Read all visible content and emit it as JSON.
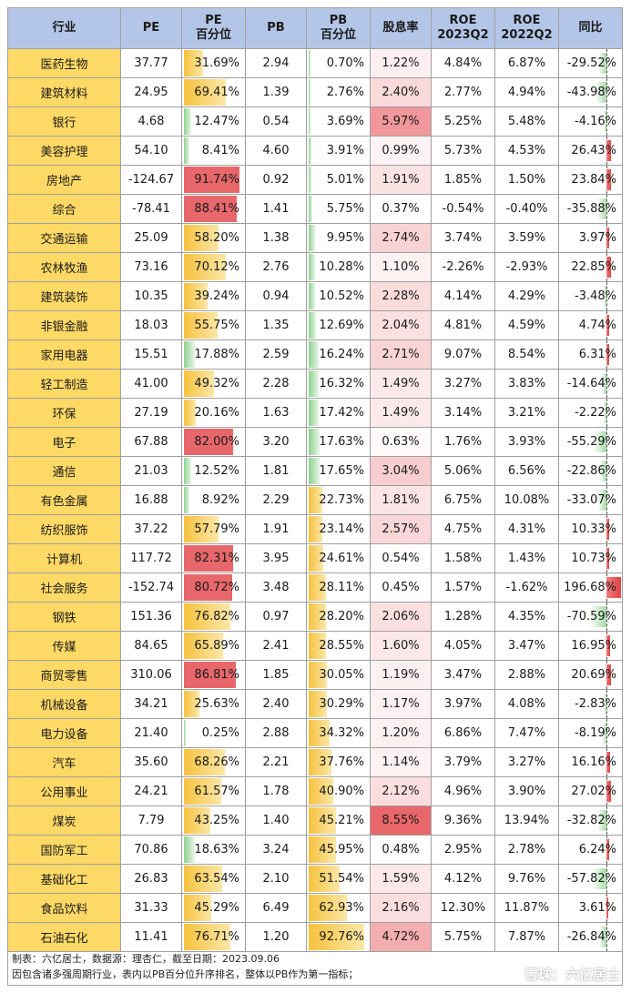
{
  "chart_data": {
    "type": "table",
    "columns": [
      "行业",
      "PE",
      "PE|百分位",
      "PB",
      "PB|百分位",
      "股息率",
      "ROE|2023Q2",
      "ROE|2022Q2",
      "同比"
    ],
    "rows": [
      [
        "医药生物",
        "37.77",
        "31.69%",
        "2.94",
        "0.70%",
        "1.22%",
        "4.84%",
        "6.87%",
        "-29.52%"
      ],
      [
        "建筑材料",
        "24.95",
        "69.41%",
        "1.39",
        "2.76%",
        "2.40%",
        "2.77%",
        "4.94%",
        "-43.98%"
      ],
      [
        "银行",
        "4.68",
        "12.47%",
        "0.54",
        "3.69%",
        "5.97%",
        "5.25%",
        "5.48%",
        "-4.16%"
      ],
      [
        "美容护理",
        "54.10",
        "8.41%",
        "4.60",
        "3.91%",
        "0.99%",
        "5.73%",
        "4.53%",
        "26.43%"
      ],
      [
        "房地产",
        "-124.67",
        "91.74%",
        "0.92",
        "5.01%",
        "1.91%",
        "1.85%",
        "1.50%",
        "23.84%"
      ],
      [
        "综合",
        "-78.41",
        "88.41%",
        "1.41",
        "5.75%",
        "0.37%",
        "-0.54%",
        "-0.40%",
        "-35.88%"
      ],
      [
        "交通运输",
        "25.09",
        "58.20%",
        "1.38",
        "9.95%",
        "2.74%",
        "3.74%",
        "3.59%",
        "3.97%"
      ],
      [
        "农林牧渔",
        "73.16",
        "70.12%",
        "2.76",
        "10.28%",
        "1.10%",
        "-2.26%",
        "-2.93%",
        "22.85%"
      ],
      [
        "建筑装饰",
        "10.35",
        "39.24%",
        "0.94",
        "10.52%",
        "2.28%",
        "4.14%",
        "4.29%",
        "-3.48%"
      ],
      [
        "非银金融",
        "18.03",
        "55.75%",
        "1.35",
        "12.69%",
        "2.04%",
        "4.81%",
        "4.59%",
        "4.74%"
      ],
      [
        "家用电器",
        "15.51",
        "17.88%",
        "2.59",
        "16.24%",
        "2.71%",
        "9.07%",
        "8.54%",
        "6.31%"
      ],
      [
        "轻工制造",
        "41.00",
        "49.32%",
        "2.28",
        "16.32%",
        "1.49%",
        "3.27%",
        "3.83%",
        "-14.64%"
      ],
      [
        "环保",
        "27.19",
        "20.16%",
        "1.63",
        "17.42%",
        "1.49%",
        "3.14%",
        "3.21%",
        "-2.22%"
      ],
      [
        "电子",
        "67.88",
        "82.00%",
        "3.20",
        "17.63%",
        "0.63%",
        "1.76%",
        "3.93%",
        "-55.29%"
      ],
      [
        "通信",
        "21.03",
        "12.52%",
        "1.81",
        "17.65%",
        "3.04%",
        "5.06%",
        "6.56%",
        "-22.86%"
      ],
      [
        "有色金属",
        "16.88",
        "8.92%",
        "2.29",
        "22.73%",
        "1.81%",
        "6.75%",
        "10.08%",
        "-33.07%"
      ],
      [
        "纺织服饰",
        "37.22",
        "57.79%",
        "1.91",
        "23.14%",
        "2.57%",
        "4.75%",
        "4.31%",
        "10.33%"
      ],
      [
        "计算机",
        "117.72",
        "82.31%",
        "3.95",
        "24.61%",
        "0.54%",
        "1.58%",
        "1.43%",
        "10.73%"
      ],
      [
        "社会服务",
        "-152.74",
        "80.72%",
        "3.48",
        "28.11%",
        "0.45%",
        "1.57%",
        "-1.62%",
        "196.68%"
      ],
      [
        "钢铁",
        "151.36",
        "76.82%",
        "0.97",
        "28.20%",
        "2.06%",
        "1.28%",
        "4.35%",
        "-70.59%"
      ],
      [
        "传媒",
        "84.65",
        "65.89%",
        "2.41",
        "28.55%",
        "1.60%",
        "4.05%",
        "3.47%",
        "16.95%"
      ],
      [
        "商贸零售",
        "310.06",
        "86.81%",
        "1.85",
        "30.05%",
        "1.19%",
        "3.47%",
        "2.88%",
        "20.69%"
      ],
      [
        "机械设备",
        "34.21",
        "25.63%",
        "2.40",
        "30.29%",
        "1.17%",
        "3.97%",
        "4.08%",
        "-2.83%"
      ],
      [
        "电力设备",
        "21.40",
        "0.25%",
        "2.88",
        "34.32%",
        "1.20%",
        "6.86%",
        "7.47%",
        "-8.19%"
      ],
      [
        "汽车",
        "35.60",
        "68.26%",
        "2.21",
        "37.76%",
        "1.14%",
        "3.79%",
        "3.27%",
        "16.16%"
      ],
      [
        "公用事业",
        "24.21",
        "61.57%",
        "1.78",
        "40.90%",
        "2.12%",
        "4.96%",
        "3.90%",
        "27.02%"
      ],
      [
        "煤炭",
        "7.79",
        "43.25%",
        "1.40",
        "45.21%",
        "8.55%",
        "9.36%",
        "13.94%",
        "-32.82%"
      ],
      [
        "国防军工",
        "70.86",
        "18.63%",
        "3.24",
        "45.95%",
        "0.48%",
        "2.95%",
        "2.78%",
        "6.24%"
      ],
      [
        "基础化工",
        "26.83",
        "63.54%",
        "2.10",
        "51.54%",
        "1.59%",
        "4.12%",
        "9.76%",
        "-57.82%"
      ],
      [
        "食品饮料",
        "31.33",
        "45.29%",
        "6.49",
        "62.93%",
        "2.16%",
        "12.30%",
        "11.87%",
        "3.61%"
      ],
      [
        "石油石化",
        "11.41",
        "76.71%",
        "1.20",
        "92.76%",
        "4.72%",
        "5.75%",
        "7.87%",
        "-26.84%"
      ]
    ],
    "highlight_colors": {
      "industry_bg": "#ffd966",
      "header_bg": "#b4c6e7",
      "high_red": "#e8676b",
      "bar_yellow": "#f6c23e",
      "bar_green": "#6cbf6c"
    }
  },
  "footer": {
    "line1": "制表：六亿居士，数据源：理杏仁，截至日期：2023.09.06",
    "line2": "因包含诸多强周期行业，表内以PB百分位升序排名，整体以PB作为第一指标；"
  },
  "watermark": "雪球：六亿居士"
}
